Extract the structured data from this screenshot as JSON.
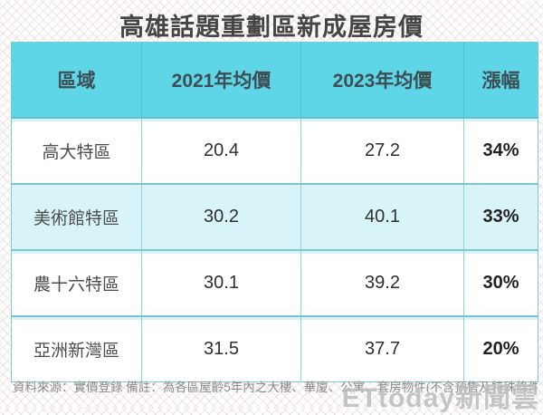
{
  "title": "高雄話題重劃區新成屋房價",
  "table": {
    "headers": [
      "區域",
      "2021年均價",
      "2023年均價",
      "漲幅"
    ],
    "rows": [
      {
        "district": "高大特區",
        "price_2021": "20.4",
        "price_2023": "27.2",
        "change": "34%"
      },
      {
        "district": "美術館特區",
        "price_2021": "30.2",
        "price_2023": "40.1",
        "change": "33%"
      },
      {
        "district": "農十六特區",
        "price_2021": "30.1",
        "price_2023": "39.2",
        "change": "30%"
      },
      {
        "district": "亞洲新灣區",
        "price_2021": "31.5",
        "price_2023": "37.7",
        "change": "20%"
      }
    ]
  },
  "footer": {
    "note": "資料來源：實價登錄 備註：為各區屋齡5年內之大樓、華廈、公寓、套房物件(不含預售及特殊條件)"
  },
  "watermark": "ETtoday新聞雲",
  "colors": {
    "header_bg": "#5ed6e8",
    "alt_row_bg": "#d9f4f8",
    "border": "#79c6d2",
    "title_text": "#454545",
    "note_text": "#8a8a8a",
    "watermark_text": "#b9bcbe"
  },
  "chart_data": {
    "type": "table",
    "title": "高雄話題重劃區新成屋房價",
    "columns": [
      "區域",
      "2021年均價",
      "2023年均價",
      "漲幅"
    ],
    "rows": [
      [
        "高大特區",
        20.4,
        27.2,
        "34%"
      ],
      [
        "美術館特區",
        30.2,
        40.1,
        "33%"
      ],
      [
        "農十六特區",
        30.1,
        39.2,
        "30%"
      ],
      [
        "亞洲新灣區",
        31.5,
        37.7,
        "20%"
      ]
    ]
  }
}
